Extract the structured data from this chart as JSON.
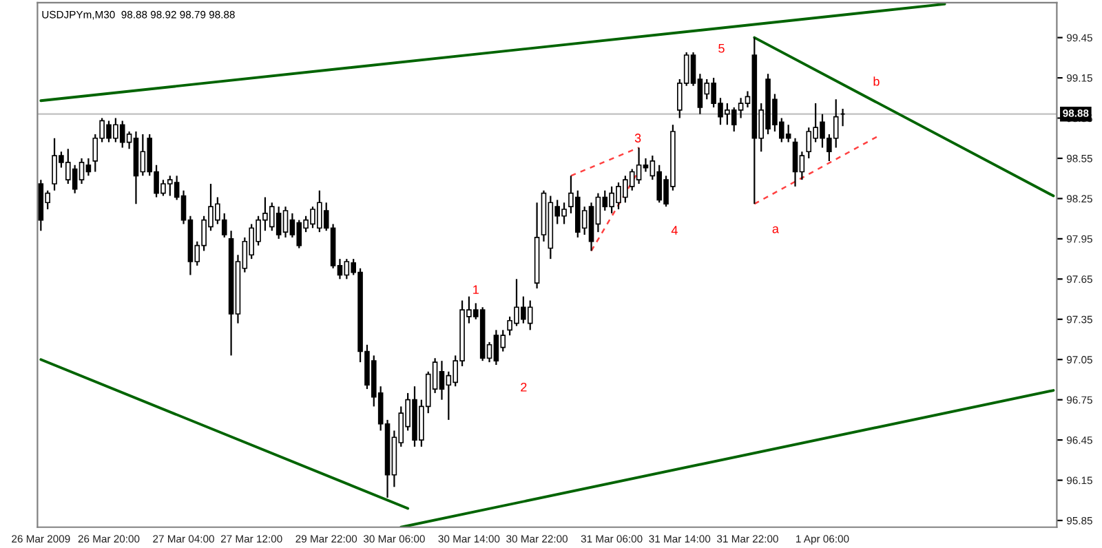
{
  "chart_data": {
    "type": "candlestick",
    "title": "USDJPYm,M30  98.88 98.92 98.79 98.88",
    "categories": [
      "26 Mar 2009",
      null,
      null,
      null,
      null,
      null,
      null,
      null,
      null,
      null,
      "26 Mar 20:00",
      null,
      null,
      null,
      null,
      null,
      null,
      null,
      null,
      null,
      null,
      "27 Mar 04:00",
      null,
      null,
      null,
      null,
      null,
      null,
      null,
      null,
      null,
      "27 Mar 12:00",
      null,
      null,
      null,
      null,
      null,
      null,
      null,
      null,
      null,
      null,
      "29 Mar 22:00",
      null,
      null,
      null,
      null,
      null,
      null,
      null,
      null,
      null,
      "30 Mar 06:00",
      null,
      null,
      null,
      null,
      null,
      null,
      null,
      null,
      null,
      null,
      "30 Mar 14:00",
      null,
      null,
      null,
      null,
      null,
      null,
      null,
      null,
      null,
      "30 Mar 22:00",
      null,
      null,
      null,
      null,
      null,
      null,
      null,
      null,
      null,
      null,
      "31 Mar 06:00",
      null,
      null,
      null,
      null,
      null,
      null,
      null,
      null,
      null,
      "31 Mar 14:00",
      null,
      null,
      null,
      null,
      null,
      null,
      null,
      null,
      null,
      "31 Mar 22:00",
      null,
      null,
      null,
      null,
      null,
      null,
      null,
      null,
      null,
      null,
      "1 Apr 06:00",
      null,
      null,
      null,
      null,
      null,
      null,
      null,
      null,
      null,
      null,
      null,
      null,
      null,
      null,
      null,
      null,
      null,
      null,
      null,
      null,
      null,
      null,
      null,
      null,
      null,
      null,
      null,
      null,
      null,
      null,
      null,
      null,
      null,
      null
    ],
    "ohlc": [
      [
        98.36,
        98.39,
        98.01,
        98.09
      ],
      [
        98.22,
        98.31,
        98.17,
        98.29
      ],
      [
        98.36,
        98.7,
        98.31,
        98.57
      ],
      [
        98.57,
        98.6,
        98.48,
        98.52
      ],
      [
        98.39,
        98.62,
        98.36,
        98.52
      ],
      [
        98.47,
        98.5,
        98.29,
        98.32
      ],
      [
        98.39,
        98.55,
        98.36,
        98.52
      ],
      [
        98.5,
        98.55,
        98.42,
        98.45
      ],
      [
        98.53,
        98.73,
        98.45,
        98.7
      ],
      [
        98.7,
        98.85,
        98.67,
        98.83
      ],
      [
        98.8,
        98.83,
        98.67,
        98.7
      ],
      [
        98.7,
        98.85,
        98.67,
        98.8
      ],
      [
        98.8,
        98.83,
        98.63,
        98.67
      ],
      [
        98.67,
        98.75,
        98.62,
        98.73
      ],
      [
        98.7,
        98.75,
        98.21,
        98.42
      ],
      [
        98.45,
        98.73,
        98.42,
        98.6
      ],
      [
        98.7,
        98.73,
        98.42,
        98.45
      ],
      [
        98.45,
        98.5,
        98.26,
        98.29
      ],
      [
        98.29,
        98.39,
        98.27,
        98.36
      ],
      [
        98.36,
        98.42,
        98.27,
        98.39
      ],
      [
        98.37,
        98.42,
        98.24,
        98.26
      ],
      [
        98.27,
        98.31,
        98.06,
        98.09
      ],
      [
        98.09,
        98.12,
        97.68,
        97.78
      ],
      [
        97.78,
        97.93,
        97.75,
        97.9
      ],
      [
        97.9,
        98.12,
        97.86,
        98.09
      ],
      [
        98.04,
        98.36,
        98.01,
        98.19
      ],
      [
        98.09,
        98.26,
        98.06,
        98.21
      ],
      [
        98.09,
        98.14,
        97.96,
        97.98
      ],
      [
        97.95,
        98.01,
        97.08,
        97.39
      ],
      [
        97.39,
        97.83,
        97.32,
        97.78
      ],
      [
        97.73,
        97.96,
        97.7,
        97.93
      ],
      [
        97.83,
        98.06,
        97.8,
        98.03
      ],
      [
        97.93,
        98.12,
        97.9,
        98.09
      ],
      [
        98.09,
        98.26,
        98.01,
        98.14
      ],
      [
        98.04,
        98.22,
        98.01,
        98.19
      ],
      [
        98.14,
        98.19,
        97.95,
        97.98
      ],
      [
        98.0,
        98.19,
        97.96,
        98.16
      ],
      [
        98.09,
        98.14,
        97.96,
        97.98
      ],
      [
        98.07,
        98.09,
        97.88,
        97.9
      ],
      [
        98.03,
        98.12,
        98.0,
        98.09
      ],
      [
        98.06,
        98.19,
        98.03,
        98.17
      ],
      [
        98.03,
        98.31,
        98.0,
        98.22
      ],
      [
        98.16,
        98.22,
        98.01,
        98.03
      ],
      [
        98.03,
        98.06,
        97.73,
        97.75
      ],
      [
        97.75,
        97.8,
        97.65,
        97.68
      ],
      [
        97.68,
        97.8,
        97.65,
        97.78
      ],
      [
        97.77,
        97.8,
        97.68,
        97.7
      ],
      [
        97.7,
        97.73,
        97.03,
        97.11
      ],
      [
        97.11,
        97.16,
        96.83,
        96.86
      ],
      [
        97.04,
        97.08,
        96.7,
        96.77
      ],
      [
        96.8,
        96.85,
        96.52,
        96.57
      ],
      [
        96.57,
        96.6,
        96.02,
        96.19
      ],
      [
        96.19,
        96.52,
        96.1,
        96.47
      ],
      [
        96.43,
        96.7,
        96.4,
        96.65
      ],
      [
        96.55,
        96.8,
        96.52,
        96.75
      ],
      [
        96.75,
        96.85,
        96.4,
        96.45
      ],
      [
        96.45,
        96.75,
        96.4,
        96.7
      ],
      [
        96.7,
        96.96,
        96.65,
        96.94
      ],
      [
        96.83,
        97.06,
        96.8,
        97.03
      ],
      [
        96.96,
        97.04,
        96.75,
        96.83
      ],
      [
        96.86,
        96.96,
        96.6,
        96.93
      ],
      [
        96.88,
        97.08,
        96.85,
        97.04
      ],
      [
        97.04,
        97.49,
        97.0,
        97.42
      ],
      [
        97.37,
        97.52,
        97.32,
        97.42
      ],
      [
        97.42,
        97.47,
        97.35,
        97.37
      ],
      [
        97.42,
        97.44,
        97.04,
        97.06
      ],
      [
        97.06,
        97.18,
        97.03,
        97.16
      ],
      [
        97.23,
        97.27,
        97.01,
        97.04
      ],
      [
        97.14,
        97.27,
        97.11,
        97.23
      ],
      [
        97.27,
        97.37,
        97.23,
        97.34
      ],
      [
        97.32,
        97.65,
        97.3,
        97.44
      ],
      [
        97.44,
        97.52,
        97.32,
        97.35
      ],
      [
        97.32,
        97.49,
        97.27,
        97.44
      ],
      [
        97.62,
        98.22,
        97.58,
        97.96
      ],
      [
        97.98,
        98.31,
        97.93,
        98.29
      ],
      [
        97.88,
        98.27,
        97.8,
        98.22
      ],
      [
        98.19,
        98.24,
        98.06,
        98.12
      ],
      [
        98.12,
        98.22,
        98.06,
        98.17
      ],
      [
        98.19,
        98.42,
        98.14,
        98.29
      ],
      [
        98.26,
        98.31,
        97.96,
        98.0
      ],
      [
        98.03,
        98.19,
        97.98,
        98.16
      ],
      [
        98.19,
        98.22,
        97.86,
        97.93
      ],
      [
        98.06,
        98.29,
        98.0,
        98.26
      ],
      [
        98.26,
        98.31,
        98.16,
        98.19
      ],
      [
        98.19,
        98.34,
        98.14,
        98.29
      ],
      [
        98.22,
        98.37,
        98.17,
        98.34
      ],
      [
        98.26,
        98.42,
        98.22,
        98.39
      ],
      [
        98.34,
        98.47,
        98.31,
        98.45
      ],
      [
        98.39,
        98.63,
        98.36,
        98.5
      ],
      [
        98.5,
        98.55,
        98.45,
        98.48
      ],
      [
        98.42,
        98.57,
        98.39,
        98.53
      ],
      [
        98.45,
        98.5,
        98.22,
        98.24
      ],
      [
        98.39,
        98.42,
        98.19,
        98.21
      ],
      [
        98.34,
        98.8,
        98.31,
        98.75
      ],
      [
        98.91,
        99.14,
        98.85,
        99.11
      ],
      [
        99.11,
        99.34,
        99.09,
        99.32
      ],
      [
        99.32,
        99.34,
        99.09,
        99.11
      ],
      [
        99.14,
        99.18,
        98.88,
        98.93
      ],
      [
        99.03,
        99.14,
        98.99,
        99.11
      ],
      [
        99.11,
        99.15,
        98.93,
        98.96
      ],
      [
        98.96,
        99.0,
        98.8,
        98.86
      ],
      [
        98.88,
        98.96,
        98.8,
        98.91
      ],
      [
        98.91,
        98.93,
        98.75,
        98.8
      ],
      [
        98.91,
        99.0,
        98.85,
        98.96
      ],
      [
        98.96,
        99.05,
        98.93,
        99.01
      ],
      [
        99.32,
        99.45,
        98.21,
        98.7
      ],
      [
        98.7,
        98.96,
        98.6,
        98.91
      ],
      [
        99.14,
        99.18,
        98.73,
        98.77
      ],
      [
        98.99,
        99.03,
        98.75,
        98.8
      ],
      [
        98.82,
        98.85,
        98.67,
        98.7
      ],
      [
        98.73,
        98.8,
        98.67,
        98.7
      ],
      [
        98.67,
        98.7,
        98.34,
        98.45
      ],
      [
        98.45,
        98.6,
        98.39,
        98.57
      ],
      [
        98.6,
        98.78,
        98.55,
        98.75
      ],
      [
        98.7,
        98.96,
        98.67,
        98.78
      ],
      [
        98.82,
        98.88,
        98.63,
        98.7
      ],
      [
        98.7,
        98.73,
        98.53,
        98.6
      ],
      [
        98.7,
        98.99,
        98.63,
        98.86
      ],
      [
        98.88,
        98.92,
        98.79,
        98.88
      ],
      null,
      null,
      null,
      null,
      null,
      null,
      null,
      null,
      null,
      null,
      null,
      null,
      null,
      null,
      null,
      null,
      null,
      null,
      null,
      null,
      null,
      null,
      null,
      null,
      null,
      null,
      null,
      null,
      null,
      null,
      null
    ],
    "series": [
      {
        "type": "line",
        "color": "#006400",
        "line_style": "solid",
        "values": [
          98.98,
          null,
          null,
          null,
          null,
          null,
          null,
          null,
          null,
          null,
          null,
          null,
          null,
          null,
          null,
          null,
          null,
          null,
          null,
          null,
          null,
          null,
          null,
          null,
          null,
          null,
          null,
          null,
          null,
          null,
          null,
          null,
          null,
          null,
          null,
          null,
          null,
          null,
          null,
          null,
          null,
          null,
          null,
          null,
          null,
          null,
          null,
          null,
          null,
          null,
          null,
          null,
          null,
          null,
          null,
          null,
          null,
          null,
          null,
          null,
          null,
          null,
          null,
          null,
          null,
          null,
          null,
          null,
          null,
          null,
          null,
          null,
          null,
          null,
          null,
          null,
          null,
          null,
          null,
          null,
          null,
          null,
          null,
          null,
          null,
          null,
          null,
          null,
          null,
          null,
          null,
          null,
          null,
          null,
          null,
          null,
          null,
          null,
          null,
          null,
          null,
          null,
          null,
          null,
          null,
          null,
          null,
          null,
          null,
          null,
          null,
          null,
          null,
          null,
          null,
          null,
          null,
          null,
          null,
          null,
          null,
          null,
          null,
          null,
          null,
          null,
          null,
          null,
          null,
          null,
          null,
          null,
          null,
          99.7,
          null,
          null,
          null,
          null,
          null,
          null,
          null,
          null,
          null,
          null,
          null,
          null,
          null,
          null,
          null,
          null
        ]
      },
      {
        "type": "line",
        "color": "#006400",
        "line_style": "solid",
        "values": [
          97.05,
          null,
          null,
          null,
          null,
          null,
          null,
          null,
          null,
          null,
          null,
          null,
          null,
          null,
          null,
          null,
          null,
          null,
          null,
          null,
          null,
          null,
          null,
          null,
          null,
          null,
          null,
          null,
          null,
          null,
          null,
          null,
          null,
          null,
          null,
          null,
          null,
          null,
          null,
          null,
          null,
          null,
          null,
          null,
          null,
          null,
          null,
          null,
          null,
          null,
          null,
          null,
          null,
          null,
          95.94,
          null,
          null,
          null,
          null,
          null,
          null,
          null,
          null,
          null,
          null,
          null,
          null,
          null,
          null,
          null,
          null,
          null,
          null,
          null,
          null,
          null,
          null,
          null,
          null,
          null,
          null,
          null,
          null,
          null,
          null,
          null,
          null,
          null,
          null,
          null,
          null,
          null,
          null,
          null,
          null,
          null,
          null,
          null,
          null,
          null,
          null,
          null,
          null,
          null,
          null,
          null,
          null,
          null,
          null,
          null,
          null,
          null,
          null,
          null,
          null,
          null,
          null,
          null,
          null,
          null,
          null,
          null,
          null,
          null,
          null,
          null,
          null,
          null,
          null,
          null,
          null,
          null,
          null,
          null,
          null,
          null,
          null,
          null,
          null,
          null,
          null,
          null,
          null,
          null,
          null,
          null,
          null,
          null,
          null,
          null
        ]
      },
      {
        "type": "line",
        "color": "#006400",
        "line_style": "solid",
        "values": [
          null,
          null,
          null,
          null,
          null,
          null,
          null,
          null,
          null,
          null,
          null,
          null,
          null,
          null,
          null,
          null,
          null,
          null,
          null,
          null,
          null,
          null,
          null,
          null,
          null,
          null,
          null,
          null,
          null,
          null,
          null,
          null,
          null,
          null,
          null,
          null,
          null,
          null,
          null,
          null,
          null,
          null,
          null,
          null,
          null,
          null,
          null,
          null,
          null,
          null,
          null,
          null,
          null,
          95.8,
          null,
          null,
          null,
          null,
          null,
          null,
          null,
          null,
          null,
          null,
          null,
          null,
          null,
          null,
          null,
          null,
          null,
          null,
          null,
          null,
          null,
          null,
          null,
          null,
          null,
          null,
          null,
          null,
          null,
          null,
          null,
          null,
          null,
          null,
          null,
          null,
          null,
          null,
          null,
          null,
          null,
          null,
          null,
          null,
          null,
          null,
          null,
          null,
          null,
          null,
          null,
          null,
          null,
          null,
          null,
          null,
          null,
          null,
          null,
          null,
          null,
          null,
          null,
          null,
          null,
          null,
          null,
          null,
          null,
          null,
          null,
          null,
          null,
          null,
          null,
          null,
          null,
          null,
          null,
          null,
          null,
          null,
          null,
          null,
          null,
          null,
          null,
          null,
          null,
          null,
          null,
          null,
          null,
          null,
          null,
          96.82
        ]
      },
      {
        "type": "line",
        "color": "#006400",
        "line_style": "solid",
        "values": [
          null,
          null,
          null,
          null,
          null,
          null,
          null,
          null,
          null,
          null,
          null,
          null,
          null,
          null,
          null,
          null,
          null,
          null,
          null,
          null,
          null,
          null,
          null,
          null,
          null,
          null,
          null,
          null,
          null,
          null,
          null,
          null,
          null,
          null,
          null,
          null,
          null,
          null,
          null,
          null,
          null,
          null,
          null,
          null,
          null,
          null,
          null,
          null,
          null,
          null,
          null,
          null,
          null,
          null,
          null,
          null,
          null,
          null,
          null,
          null,
          null,
          null,
          null,
          null,
          null,
          null,
          null,
          null,
          null,
          null,
          null,
          null,
          null,
          null,
          null,
          null,
          null,
          null,
          null,
          null,
          null,
          null,
          null,
          null,
          null,
          null,
          null,
          null,
          null,
          null,
          null,
          null,
          null,
          null,
          null,
          null,
          null,
          null,
          null,
          null,
          null,
          null,
          null,
          null,
          null,
          99.45,
          null,
          null,
          null,
          null,
          null,
          null,
          null,
          null,
          null,
          null,
          null,
          null,
          null,
          null,
          null,
          null,
          null,
          null,
          null,
          null,
          null,
          null,
          null,
          null,
          null,
          null,
          null,
          null,
          null,
          null,
          null,
          null,
          null,
          null,
          null,
          null,
          null,
          null,
          null,
          null,
          null,
          null,
          null,
          98.27
        ]
      },
      {
        "type": "line",
        "color": "#ff4040",
        "line_style": "dashed",
        "values": [
          null,
          null,
          null,
          null,
          null,
          null,
          null,
          null,
          null,
          null,
          null,
          null,
          null,
          null,
          null,
          null,
          null,
          null,
          null,
          null,
          null,
          null,
          null,
          null,
          null,
          null,
          null,
          null,
          null,
          null,
          null,
          null,
          null,
          null,
          null,
          null,
          null,
          null,
          null,
          null,
          null,
          null,
          null,
          null,
          null,
          null,
          null,
          null,
          null,
          null,
          null,
          null,
          null,
          null,
          null,
          null,
          null,
          null,
          null,
          null,
          null,
          null,
          null,
          null,
          null,
          null,
          null,
          null,
          null,
          null,
          null,
          null,
          null,
          null,
          null,
          null,
          null,
          null,
          98.42,
          null,
          null,
          null,
          null,
          null,
          null,
          null,
          null,
          null,
          98.63,
          null,
          null,
          null,
          null,
          null,
          null,
          null,
          null,
          null,
          null,
          null,
          null,
          null,
          null,
          null,
          null,
          null,
          null,
          null,
          null,
          null,
          null,
          null,
          null,
          null,
          null,
          null,
          null,
          null,
          null,
          null,
          null,
          null,
          null,
          null,
          null,
          null,
          null,
          null,
          null,
          null,
          null,
          null,
          null,
          null,
          null,
          null,
          null,
          null,
          null,
          null,
          null,
          null,
          null,
          null,
          null,
          null,
          null,
          null,
          null,
          null
        ]
      },
      {
        "type": "line",
        "color": "#ff4040",
        "line_style": "dashed",
        "values": [
          null,
          null,
          null,
          null,
          null,
          null,
          null,
          null,
          null,
          null,
          null,
          null,
          null,
          null,
          null,
          null,
          null,
          null,
          null,
          null,
          null,
          null,
          null,
          null,
          null,
          null,
          null,
          null,
          null,
          null,
          null,
          null,
          null,
          null,
          null,
          null,
          null,
          null,
          null,
          null,
          null,
          null,
          null,
          null,
          null,
          null,
          null,
          null,
          null,
          null,
          null,
          null,
          null,
          null,
          null,
          null,
          null,
          null,
          null,
          null,
          null,
          null,
          null,
          null,
          null,
          null,
          null,
          null,
          null,
          null,
          null,
          null,
          null,
          null,
          null,
          null,
          null,
          null,
          null,
          null,
          null,
          97.86,
          null,
          null,
          null,
          null,
          null,
          null,
          98.46,
          null,
          null,
          null,
          null,
          null,
          null,
          null,
          null,
          null,
          null,
          null,
          null,
          null,
          null,
          null,
          null,
          null,
          null,
          null,
          null,
          null,
          null,
          null,
          null,
          null,
          null,
          null,
          null,
          null,
          null,
          null,
          null,
          null,
          null,
          null,
          null,
          null,
          null,
          null,
          null,
          null,
          null,
          null,
          null,
          null,
          null,
          null,
          null,
          null,
          null,
          null,
          null,
          null,
          null,
          null,
          null,
          null,
          null,
          null,
          null,
          null
        ]
      },
      {
        "type": "line",
        "color": "#ff4040",
        "line_style": "dashed",
        "values": [
          null,
          null,
          null,
          null,
          null,
          null,
          null,
          null,
          null,
          null,
          null,
          null,
          null,
          null,
          null,
          null,
          null,
          null,
          null,
          null,
          null,
          null,
          null,
          null,
          null,
          null,
          null,
          null,
          null,
          null,
          null,
          null,
          null,
          null,
          null,
          null,
          null,
          null,
          null,
          null,
          null,
          null,
          null,
          null,
          null,
          null,
          null,
          null,
          null,
          null,
          null,
          null,
          null,
          null,
          null,
          null,
          null,
          null,
          null,
          null,
          null,
          null,
          null,
          null,
          null,
          null,
          null,
          null,
          null,
          null,
          null,
          null,
          null,
          null,
          null,
          null,
          null,
          null,
          null,
          null,
          null,
          null,
          null,
          null,
          null,
          null,
          null,
          null,
          null,
          null,
          null,
          null,
          null,
          null,
          null,
          null,
          null,
          null,
          null,
          null,
          null,
          null,
          null,
          null,
          null,
          98.21,
          null,
          null,
          null,
          null,
          null,
          null,
          null,
          null,
          null,
          null,
          null,
          null,
          null,
          null,
          null,
          null,
          null,
          98.71,
          null,
          null,
          null,
          null,
          null,
          null,
          null,
          null,
          null,
          null,
          null,
          null,
          null,
          null,
          null,
          null,
          null,
          null,
          null,
          null,
          null,
          null,
          null,
          null,
          null,
          null
        ]
      }
    ],
    "annotations": [
      "1",
      "2",
      "3",
      "4",
      "5",
      "a",
      "b"
    ],
    "ref_lines": [
      {
        "axis": "y",
        "value": 98.88,
        "label": "98.88",
        "color": "#c0c0c0"
      }
    ],
    "ylim": [
      95.8,
      99.71
    ],
    "yticks": [
      95.85,
      96.15,
      96.45,
      96.75,
      97.05,
      97.35,
      97.65,
      97.95,
      98.25,
      98.55,
      98.85,
      99.15,
      99.45
    ],
    "grid": false,
    "legend": false
  }
}
